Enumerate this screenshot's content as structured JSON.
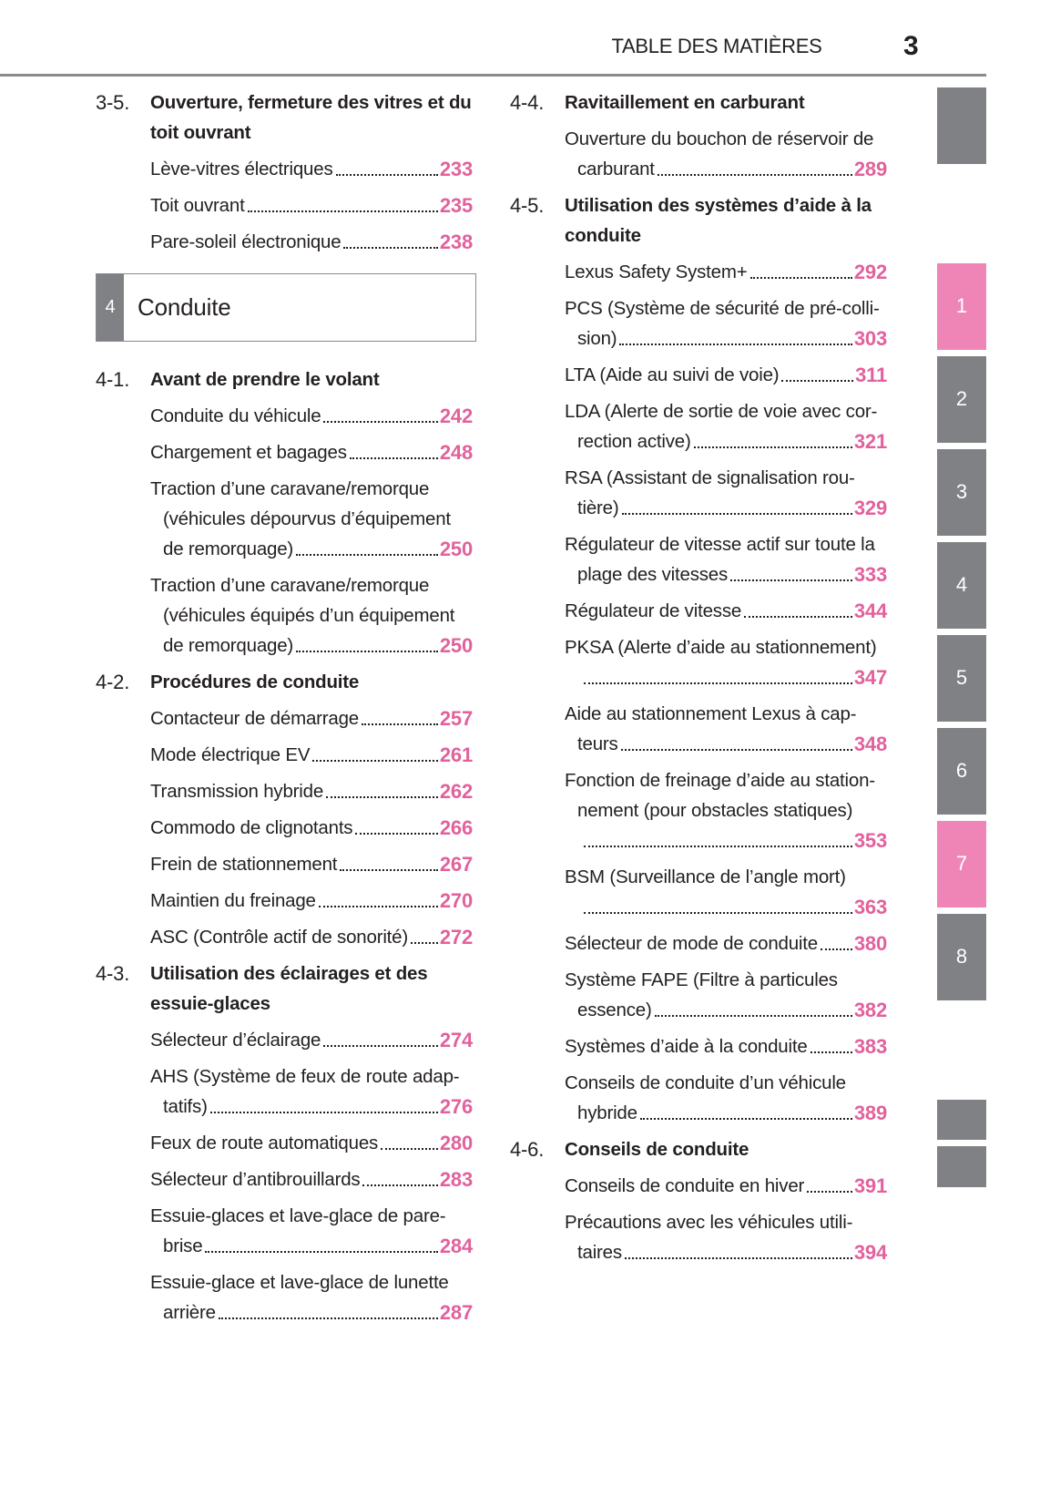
{
  "header": {
    "title": "TABLE DES MATIÈRES",
    "page": 3
  },
  "left_column": [
    {
      "number": "3-5.",
      "lines": [
        "Ouverture, fermeture des vitres et du",
        "toit ouvrant"
      ]
    },
    {
      "lines": [
        "Lève-vitres électriques"
      ],
      "page": 233
    },
    {
      "lines": [
        "Toit ouvrant"
      ],
      "page": 235
    },
    {
      "lines": [
        "Pare-soleil électronique"
      ],
      "page": 238
    },
    {
      "chapter": {
        "number": "4",
        "title": "Conduite"
      }
    },
    {
      "number": "4-1.",
      "lines": [
        "Avant de prendre le volant"
      ]
    },
    {
      "lines": [
        "Conduite du véhicule"
      ],
      "page": 242
    },
    {
      "lines": [
        "Chargement et bagages"
      ],
      "page": 248
    },
    {
      "lines": [
        "Traction d’une caravane/remorque",
        "(véhicules dépourvus d’équipement",
        "de remorquage)"
      ],
      "page": 250
    },
    {
      "lines": [
        "Traction d’une caravane/remorque",
        "(véhicules équipés d’un équipement",
        "de remorquage)"
      ],
      "page": 250
    },
    {
      "number": "4-2.",
      "lines": [
        "Procédures de conduite"
      ]
    },
    {
      "lines": [
        "Contacteur de démarrage"
      ],
      "page": 257
    },
    {
      "lines": [
        "Mode électrique EV"
      ],
      "page": 261
    },
    {
      "lines": [
        "Transmission hybride"
      ],
      "page": 262
    },
    {
      "lines": [
        "Commodo de clignotants"
      ],
      "page": 266
    },
    {
      "lines": [
        "Frein de stationnement"
      ],
      "page": 267
    },
    {
      "lines": [
        "Maintien du freinage"
      ],
      "page": 270
    },
    {
      "lines": [
        "ASC (Contrôle actif de sonorité)"
      ],
      "page": 272
    },
    {
      "number": "4-3.",
      "lines": [
        "Utilisation des éclairages et des",
        "essuie-glaces"
      ]
    },
    {
      "lines": [
        "Sélecteur d’éclairage"
      ],
      "page": 274
    },
    {
      "lines": [
        "AHS (Système de feux de route adap-",
        "tatifs)"
      ],
      "page": 276
    },
    {
      "lines": [
        "Feux de route automatiques"
      ],
      "page": 280
    },
    {
      "lines": [
        "Sélecteur d’antibrouillards"
      ],
      "page": 283
    },
    {
      "lines": [
        "Essuie-glaces et lave-glace de pare-",
        "brise"
      ],
      "page": 284
    },
    {
      "lines": [
        "Essuie-glace et lave-glace de lunette",
        "arrière"
      ],
      "page": 287
    }
  ],
  "right_column": [
    {
      "number": "4-4.",
      "lines": [
        "Ravitaillement en carburant"
      ]
    },
    {
      "lines": [
        "Ouverture du bouchon de réservoir de",
        "carburant"
      ],
      "page": 289
    },
    {
      "number": "4-5.",
      "lines": [
        "Utilisation des systèmes d’aide à la",
        "conduite"
      ]
    },
    {
      "lines": [
        "Lexus Safety System+"
      ],
      "page": 292
    },
    {
      "lines": [
        "PCS (Système de sécurité de pré-colli-",
        "sion)"
      ],
      "page": 303
    },
    {
      "lines": [
        "LTA (Aide au suivi de voie)"
      ],
      "page": 311
    },
    {
      "lines": [
        "LDA (Alerte de sortie de voie avec cor-",
        "rection active)"
      ],
      "page": 321
    },
    {
      "lines": [
        "RSA (Assistant de signalisation rou-",
        "tière)"
      ],
      "page": 329
    },
    {
      "lines": [
        "Régulateur de vitesse actif sur toute la",
        "plage des vitesses"
      ],
      "page": 333
    },
    {
      "lines": [
        "Régulateur de vitesse"
      ],
      "page": 344
    },
    {
      "lines": [
        "PKSA (Alerte d’aide au stationnement)"
      ],
      "page": 347,
      "own_line": true
    },
    {
      "lines": [
        "Aide au stationnement Lexus à cap-",
        "teurs"
      ],
      "page": 348
    },
    {
      "lines": [
        "Fonction de freinage d’aide au station-",
        "nement (pour obstacles statiques)"
      ],
      "page": 353,
      "own_line": true
    },
    {
      "lines": [
        "BSM (Surveillance de l’angle mort)"
      ],
      "page": 363,
      "own_line": true
    },
    {
      "lines": [
        "Sélecteur de mode de conduite"
      ],
      "page": 380
    },
    {
      "lines": [
        "Système FAPE (Filtre à particules",
        "essence)"
      ],
      "page": 382
    },
    {
      "lines": [
        "Systèmes d’aide à la conduite"
      ],
      "page": 383
    },
    {
      "lines": [
        "Conseils de conduite d’un véhicule",
        "hybride"
      ],
      "page": 389
    },
    {
      "number": "4-6.",
      "lines": [
        "Conseils de conduite"
      ]
    },
    {
      "lines": [
        "Conseils de conduite en hiver"
      ],
      "page": 391
    },
    {
      "lines": [
        "Précautions avec les véhicules utili-",
        "taires"
      ],
      "page": 394
    }
  ],
  "tabs": [
    "1",
    "2",
    "3",
    "4",
    "5",
    "6",
    "7",
    "8"
  ]
}
